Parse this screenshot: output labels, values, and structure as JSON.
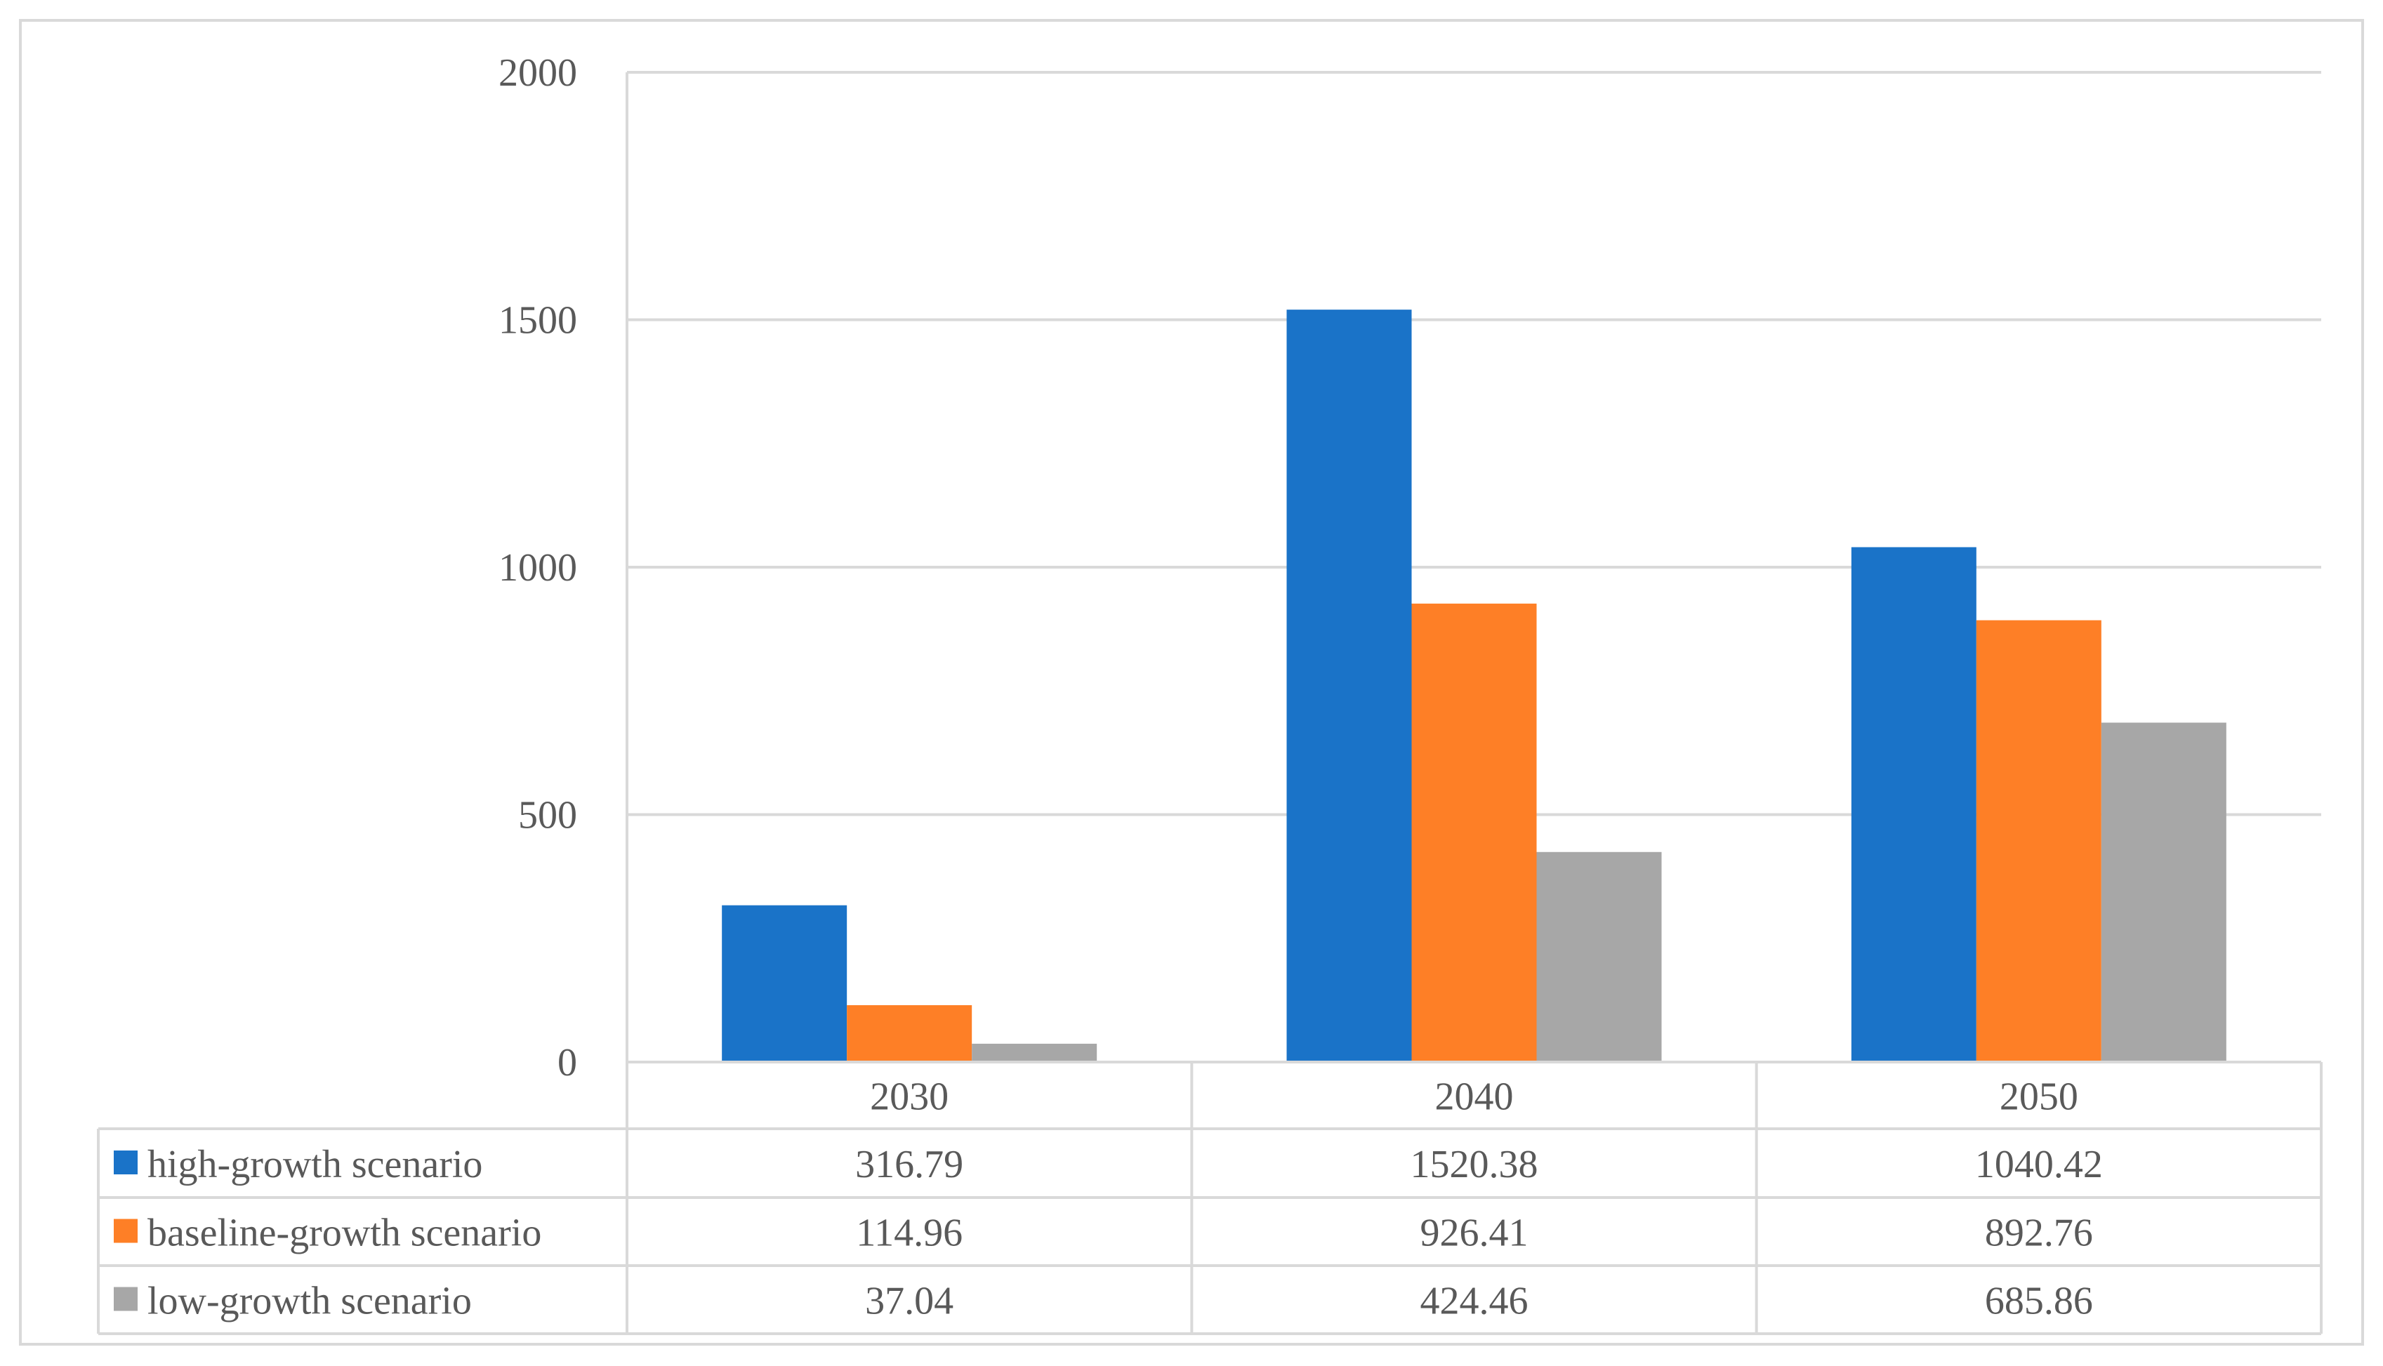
{
  "chart_data": {
    "type": "bar",
    "categories": [
      "2030",
      "2040",
      "2050"
    ],
    "series": [
      {
        "name": "high-growth scenario",
        "color": "#1a73c8",
        "values": [
          316.79,
          1520.38,
          1040.42
        ],
        "labels": [
          "316.79",
          "1520.38",
          "1040.42"
        ]
      },
      {
        "name": "baseline-growth scenario",
        "color": "#fe7f26",
        "values": [
          114.96,
          926.41,
          892.76
        ],
        "labels": [
          "114.96",
          "926.41",
          "892.76"
        ]
      },
      {
        "name": "low-growth scenario",
        "color": "#a7a7a7",
        "values": [
          37.04,
          424.46,
          685.86
        ],
        "labels": [
          "37.04",
          "424.46",
          "685.86"
        ]
      }
    ],
    "y_ticks": [
      "0",
      "500",
      "1000",
      "1500",
      "2000"
    ],
    "ylim": [
      0,
      2000
    ],
    "grid": true,
    "legend": "data-table"
  }
}
